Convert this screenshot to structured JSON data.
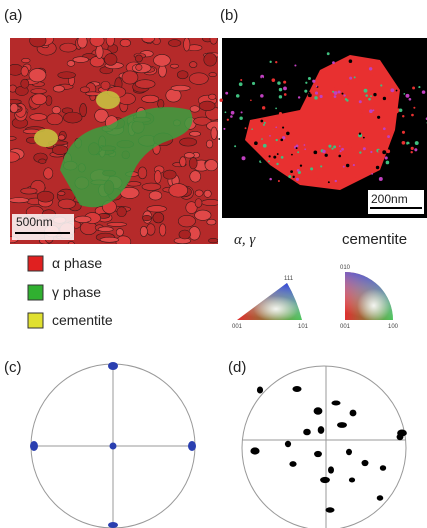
{
  "panels": {
    "a": {
      "label": "(a)",
      "scale_bar": "500nm",
      "legend": [
        "α phase",
        "γ phase",
        "cementite"
      ]
    },
    "b": {
      "label": "(b)",
      "scale_bar": "200nm",
      "ipf": {
        "left_title": "α, γ",
        "right_title": "cementite",
        "triangle_corners": [
          "111",
          "001",
          "101"
        ],
        "quadrant_corners": [
          "010",
          "001",
          "100"
        ]
      }
    },
    "c": {
      "label": "(c)"
    },
    "d": {
      "label": "(d)"
    }
  }
}
